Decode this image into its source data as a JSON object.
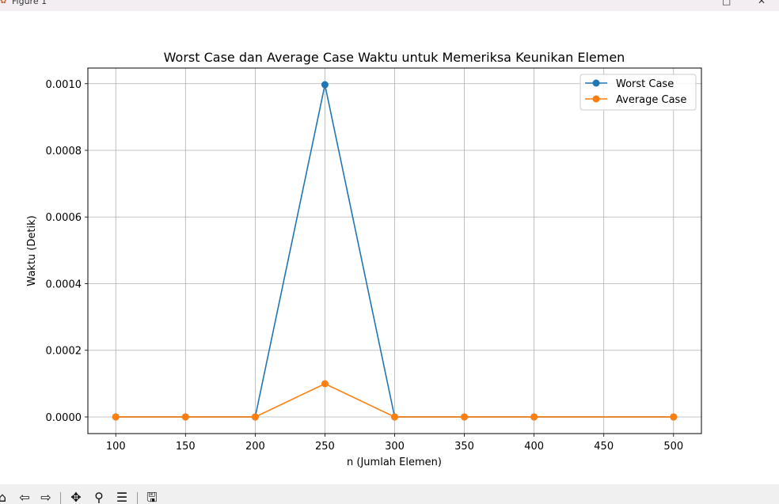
{
  "window": {
    "title": "Figure 1",
    "app_icon": "matplotlib-icon",
    "buttons": [
      "maximize-icon",
      "close-icon"
    ]
  },
  "toolbar": {
    "buttons": [
      "home-icon",
      "back-icon",
      "forward-icon",
      "pan-icon",
      "zoom-icon",
      "configure-subplots-icon",
      "save-icon"
    ]
  },
  "chart_data": {
    "type": "line",
    "title": "Worst Case dan Average Case Waktu untuk Memeriksa Keunikan Elemen",
    "xlabel": "n (Jumlah Elemen)",
    "ylabel": "Waktu (Detik)",
    "x": [
      100,
      150,
      200,
      250,
      300,
      350,
      400,
      450,
      500
    ],
    "series": [
      {
        "name": "Worst Case",
        "color": "#1f77b4",
        "marker": "circle",
        "x": [
          100,
          150,
          200,
          250,
          300,
          350,
          400,
          500
        ],
        "values": [
          0.0,
          0.0,
          0.0,
          0.000997,
          0.0,
          0.0,
          0.0,
          0.0
        ]
      },
      {
        "name": "Average Case",
        "color": "#ff7f0e",
        "marker": "circle",
        "x": [
          100,
          150,
          200,
          250,
          300,
          350,
          400,
          500
        ],
        "values": [
          0.0,
          0.0,
          0.0,
          9.97e-05,
          0.0,
          0.0,
          0.0,
          0.0
        ]
      }
    ],
    "xticks": [
      100,
      150,
      200,
      250,
      300,
      350,
      400,
      450,
      500
    ],
    "xtick_labels": [
      "100",
      "150",
      "200",
      "250",
      "300",
      "350",
      "400",
      "450",
      "500"
    ],
    "yticks": [
      0.0,
      0.0002,
      0.0004,
      0.0006,
      0.0008,
      0.001
    ],
    "ytick_labels": [
      "0.0000",
      "0.0002",
      "0.0004",
      "0.0006",
      "0.0008",
      "0.0010"
    ],
    "xlim": [
      80,
      520
    ],
    "ylim": [
      -4.99e-05,
      0.0010469
    ],
    "grid": true,
    "legend_position": "upper right"
  }
}
